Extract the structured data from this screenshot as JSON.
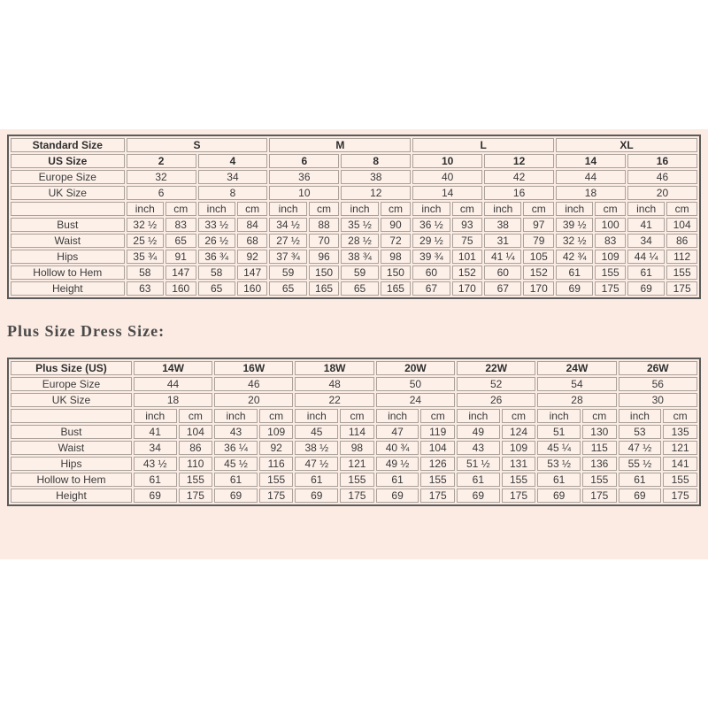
{
  "plus_heading": "Plus Size Dress Size:",
  "colors": {
    "band_background": "#fbebe3",
    "cell_background": "#fdf0e9",
    "outer_border": "#5b5b5b",
    "grid_line": "#aba29c",
    "text": "#3a3a3a"
  },
  "standard_table": {
    "rows": [
      {
        "header": true,
        "cells": [
          [
            "Standard Size",
            1
          ],
          [
            "S",
            4
          ],
          [
            "M",
            4
          ],
          [
            "L",
            4
          ],
          [
            "XL",
            4
          ]
        ]
      },
      {
        "header": true,
        "cells": [
          [
            "US Size",
            1
          ],
          [
            "2",
            2
          ],
          [
            "4",
            2
          ],
          [
            "6",
            2
          ],
          [
            "8",
            2
          ],
          [
            "10",
            2
          ],
          [
            "12",
            2
          ],
          [
            "14",
            2
          ],
          [
            "16",
            2
          ]
        ]
      },
      {
        "header": false,
        "cells": [
          [
            "Europe Size",
            1
          ],
          [
            "32",
            2
          ],
          [
            "34",
            2
          ],
          [
            "36",
            2
          ],
          [
            "38",
            2
          ],
          [
            "40",
            2
          ],
          [
            "42",
            2
          ],
          [
            "44",
            2
          ],
          [
            "46",
            2
          ]
        ]
      },
      {
        "header": false,
        "cells": [
          [
            "UK Size",
            1
          ],
          [
            "6",
            2
          ],
          [
            "8",
            2
          ],
          [
            "10",
            2
          ],
          [
            "12",
            2
          ],
          [
            "14",
            2
          ],
          [
            "16",
            2
          ],
          [
            "18",
            2
          ],
          [
            "20",
            2
          ]
        ]
      },
      {
        "header": false,
        "cells": [
          "",
          "inch",
          "cm",
          "inch",
          "cm",
          "inch",
          "cm",
          "inch",
          "cm",
          "inch",
          "cm",
          "inch",
          "cm",
          "inch",
          "cm",
          "inch",
          "cm"
        ]
      },
      {
        "header": false,
        "cells": [
          "Bust",
          "32 ½",
          "83",
          "33 ½",
          "84",
          "34 ½",
          "88",
          "35 ½",
          "90",
          "36 ½",
          "93",
          "38",
          "97",
          "39 ½",
          "100",
          "41",
          "104"
        ]
      },
      {
        "header": false,
        "cells": [
          "Waist",
          "25 ½",
          "65",
          "26 ½",
          "68",
          "27 ½",
          "70",
          "28 ½",
          "72",
          "29 ½",
          "75",
          "31",
          "79",
          "32 ½",
          "83",
          "34",
          "86"
        ]
      },
      {
        "header": false,
        "cells": [
          "Hips",
          "35 ¾",
          "91",
          "36 ¾",
          "92",
          "37 ¾",
          "96",
          "38 ¾",
          "98",
          "39 ¾",
          "101",
          "41 ¼",
          "105",
          "42 ¾",
          "109",
          "44 ¼",
          "112"
        ]
      },
      {
        "header": false,
        "cells": [
          "Hollow to Hem",
          "58",
          "147",
          "58",
          "147",
          "59",
          "150",
          "59",
          "150",
          "60",
          "152",
          "60",
          "152",
          "61",
          "155",
          "61",
          "155"
        ]
      },
      {
        "header": false,
        "cells": [
          "Height",
          "63",
          "160",
          "65",
          "160",
          "65",
          "165",
          "65",
          "165",
          "67",
          "170",
          "67",
          "170",
          "69",
          "175",
          "69",
          "175"
        ]
      }
    ]
  },
  "plus_table": {
    "rows": [
      {
        "header": true,
        "cells": [
          [
            "Plus Size (US)",
            1
          ],
          [
            "14W",
            2
          ],
          [
            "16W",
            2
          ],
          [
            "18W",
            2
          ],
          [
            "20W",
            2
          ],
          [
            "22W",
            2
          ],
          [
            "24W",
            2
          ],
          [
            "26W",
            2
          ]
        ]
      },
      {
        "header": false,
        "cells": [
          [
            "Europe Size",
            1
          ],
          [
            "44",
            2
          ],
          [
            "46",
            2
          ],
          [
            "48",
            2
          ],
          [
            "50",
            2
          ],
          [
            "52",
            2
          ],
          [
            "54",
            2
          ],
          [
            "56",
            2
          ]
        ]
      },
      {
        "header": false,
        "cells": [
          [
            "UK Size",
            1
          ],
          [
            "18",
            2
          ],
          [
            "20",
            2
          ],
          [
            "22",
            2
          ],
          [
            "24",
            2
          ],
          [
            "26",
            2
          ],
          [
            "28",
            2
          ],
          [
            "30",
            2
          ]
        ]
      },
      {
        "header": false,
        "cells": [
          "",
          "inch",
          "cm",
          "inch",
          "cm",
          "inch",
          "cm",
          "inch",
          "cm",
          "inch",
          "cm",
          "inch",
          "cm",
          "inch",
          "cm"
        ]
      },
      {
        "header": false,
        "cells": [
          "Bust",
          "41",
          "104",
          "43",
          "109",
          "45",
          "114",
          "47",
          "119",
          "49",
          "124",
          "51",
          "130",
          "53",
          "135"
        ]
      },
      {
        "header": false,
        "cells": [
          "Waist",
          "34",
          "86",
          "36 ¼",
          "92",
          "38 ½",
          "98",
          "40 ¾",
          "104",
          "43",
          "109",
          "45 ¼",
          "115",
          "47 ½",
          "121"
        ]
      },
      {
        "header": false,
        "cells": [
          "Hips",
          "43 ½",
          "110",
          "45 ½",
          "116",
          "47 ½",
          "121",
          "49 ½",
          "126",
          "51 ½",
          "131",
          "53 ½",
          "136",
          "55 ½",
          "141"
        ]
      },
      {
        "header": false,
        "cells": [
          "Hollow to Hem",
          "61",
          "155",
          "61",
          "155",
          "61",
          "155",
          "61",
          "155",
          "61",
          "155",
          "61",
          "155",
          "61",
          "155"
        ]
      },
      {
        "header": false,
        "cells": [
          "Height",
          "69",
          "175",
          "69",
          "175",
          "69",
          "175",
          "69",
          "175",
          "69",
          "175",
          "69",
          "175",
          "69",
          "175"
        ]
      }
    ]
  }
}
